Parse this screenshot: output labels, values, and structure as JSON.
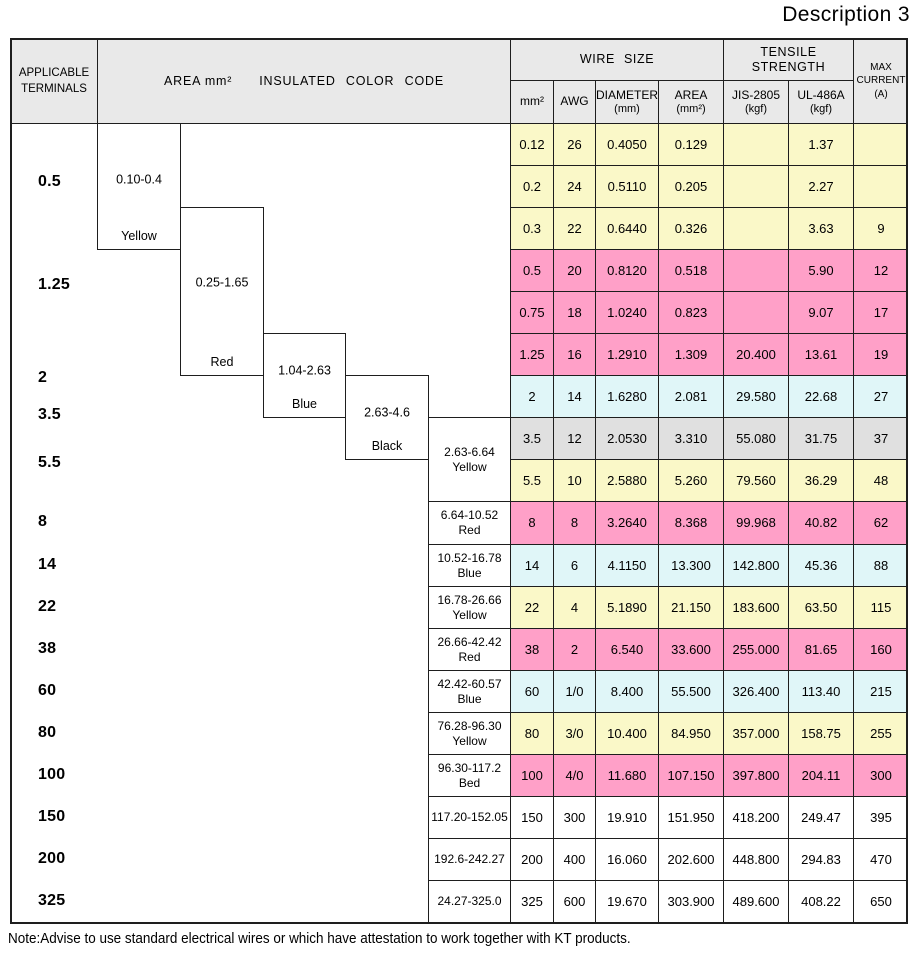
{
  "title": "Description 3",
  "note": "Note:Advise to use standard electrical wires or which have attestation to work together with KT products.",
  "palette": {
    "yellow": "#FAF8C8",
    "pink": "#FFA0C8",
    "cyan": "#E0F6F8",
    "gray": "#E0E0E0",
    "white": "#FFFFFF",
    "header": "#E9E9E9",
    "border": "#1E1E1E"
  },
  "header": {
    "applicable": [
      "APPLICABLE",
      "TERMINALS"
    ],
    "area_label": "AREA mm²",
    "color_code_label": "INSULATED COLOR CODE",
    "wire_size": "WIRE SIZE",
    "tensile_strength": "TENSILE STRENGTH",
    "max_current": [
      "MAX",
      "CURRENT",
      "(A)"
    ],
    "sub": [
      {
        "l1": "mm²"
      },
      {
        "l1": "AWG"
      },
      {
        "l1": "DIAMETER",
        "l2": "(mm)"
      },
      {
        "l1": "AREA",
        "l2": "(mm²)"
      },
      {
        "l1": "JIS-2805",
        "l2": "(kgf)"
      },
      {
        "l1": "UL-486A",
        "l2": "(kgf)"
      }
    ]
  },
  "terminals": [
    "0.5",
    "1.25",
    "2",
    "3.5",
    "5.5",
    "8",
    "14",
    "22",
    "38",
    "60",
    "80",
    "100",
    "150",
    "200",
    "325"
  ],
  "staircase": [
    {
      "range": "0.10-0.4",
      "color": "Yellow"
    },
    {
      "range": "0.25-1.65",
      "color": "Red"
    },
    {
      "range": "1.04-2.63",
      "color": "Blue"
    },
    {
      "range": "2.63-4.6",
      "color": "Black"
    }
  ],
  "range_cells": [
    {
      "label": "2.63-6.64",
      "color": "Yellow"
    },
    {
      "label": "6.64-10.52",
      "color": "Red"
    },
    {
      "label": "10.52-16.78",
      "color": "Blue"
    },
    {
      "label": "16.78-26.66",
      "color": "Yellow"
    },
    {
      "label": "26.66-42.42",
      "color": "Red"
    },
    {
      "label": "42.42-60.57",
      "color": "Blue"
    },
    {
      "label": "76.28-96.30",
      "color": "Yellow"
    },
    {
      "label": "96.30-117.2",
      "color": "Bed"
    },
    {
      "label": "117.20-152.05",
      "color": ""
    },
    {
      "label": "192.6-242.27",
      "color": ""
    },
    {
      "label": "24.27-325.0",
      "color": ""
    }
  ],
  "rows": [
    {
      "fill": "yellow",
      "cells": [
        "0.12",
        "26",
        "0.4050",
        "0.129",
        "",
        "1.37",
        ""
      ]
    },
    {
      "fill": "yellow",
      "cells": [
        "0.2",
        "24",
        "0.5110",
        "0.205",
        "",
        "2.27",
        ""
      ]
    },
    {
      "fill": "yellow",
      "cells": [
        "0.3",
        "22",
        "0.6440",
        "0.326",
        "",
        "3.63",
        "9"
      ]
    },
    {
      "fill": "pink",
      "cells": [
        "0.5",
        "20",
        "0.8120",
        "0.518",
        "",
        "5.90",
        "12"
      ]
    },
    {
      "fill": "pink",
      "cells": [
        "0.75",
        "18",
        "1.0240",
        "0.823",
        "",
        "9.07",
        "17"
      ]
    },
    {
      "fill": "pink",
      "cells": [
        "1.25",
        "16",
        "1.2910",
        "1.309",
        "20.400",
        "13.61",
        "19"
      ]
    },
    {
      "fill": "cyan",
      "cells": [
        "2",
        "14",
        "1.6280",
        "2.081",
        "29.580",
        "22.68",
        "27"
      ]
    },
    {
      "fill": "gray",
      "cells": [
        "3.5",
        "12",
        "2.0530",
        "3.310",
        "55.080",
        "31.75",
        "37"
      ]
    },
    {
      "fill": "yellow",
      "cells": [
        "5.5",
        "10",
        "2.5880",
        "5.260",
        "79.560",
        "36.29",
        "48"
      ]
    },
    {
      "fill": "pink",
      "cells": [
        "8",
        "8",
        "3.2640",
        "8.368",
        "99.968",
        "40.82",
        "62"
      ]
    },
    {
      "fill": "cyan",
      "cells": [
        "14",
        "6",
        "4.1150",
        "13.300",
        "142.800",
        "45.36",
        "88"
      ]
    },
    {
      "fill": "yellow",
      "cells": [
        "22",
        "4",
        "5.1890",
        "21.150",
        "183.600",
        "63.50",
        "115"
      ]
    },
    {
      "fill": "pink",
      "cells": [
        "38",
        "2",
        "6.540",
        "33.600",
        "255.000",
        "81.65",
        "160"
      ]
    },
    {
      "fill": "cyan",
      "cells": [
        "60",
        "1/0",
        "8.400",
        "55.500",
        "326.400",
        "113.40",
        "215"
      ]
    },
    {
      "fill": "yellow",
      "cells": [
        "80",
        "3/0",
        "10.400",
        "84.950",
        "357.000",
        "158.75",
        "255"
      ]
    },
    {
      "fill": "pink",
      "cells": [
        "100",
        "4/0",
        "11.680",
        "107.150",
        "397.800",
        "204.11",
        "300"
      ]
    },
    {
      "fill": "white",
      "cells": [
        "150",
        "300",
        "19.910",
        "151.950",
        "418.200",
        "249.47",
        "395"
      ]
    },
    {
      "fill": "white",
      "cells": [
        "200",
        "400",
        "16.060",
        "202.600",
        "448.800",
        "294.83",
        "470"
      ]
    },
    {
      "fill": "white",
      "cells": [
        "325",
        "600",
        "19.670",
        "303.900",
        "489.600",
        "408.22",
        "650"
      ]
    }
  ]
}
